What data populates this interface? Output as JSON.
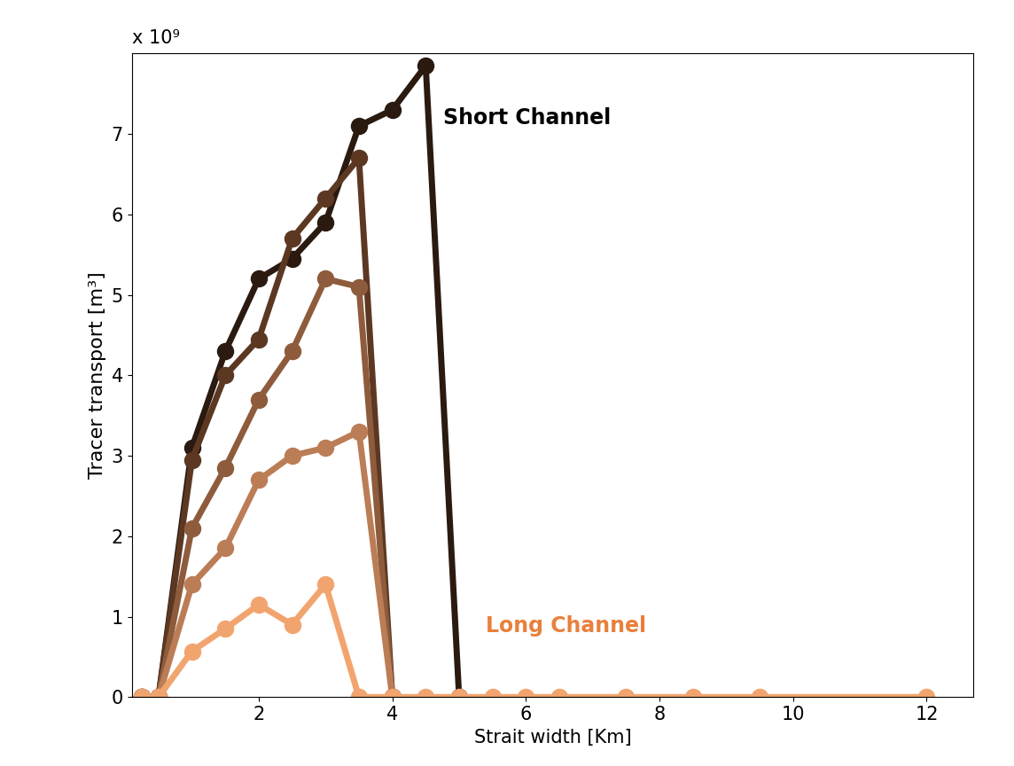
{
  "chart_data": {
    "type": "line",
    "x_label": "Strait width [Km]",
    "y_label": "Tracer transport [m³]",
    "y_multiplier": "x 10⁹",
    "annotations": [
      {
        "text": "Short Channel",
        "color": "#000000"
      },
      {
        "text": "Long Channel",
        "color": "#e8803c"
      }
    ],
    "xlim": [
      0.1,
      12.7
    ],
    "xticks": [
      2,
      4,
      6,
      8,
      10,
      12
    ],
    "ylim": [
      0,
      8
    ],
    "yticks": [
      0,
      1,
      2,
      3,
      4,
      5,
      6,
      7
    ],
    "grid": false,
    "marker": "o",
    "line_style": "solid",
    "series": [
      {
        "color": "#2a1a10",
        "x": [
          0.25,
          0.5,
          1,
          1.5,
          2,
          2.5,
          3,
          3.5,
          4,
          4.5,
          5
        ],
        "values": [
          0,
          0,
          3.1,
          4.3,
          5.2,
          5.45,
          5.9,
          7.1,
          7.3,
          7.85,
          0
        ]
      },
      {
        "color": "#5c3823",
        "x": [
          0.25,
          0.5,
          1,
          1.5,
          2,
          2.5,
          3,
          3.5,
          4
        ],
        "values": [
          0,
          0,
          2.95,
          4.0,
          4.45,
          5.7,
          6.2,
          6.7,
          0
        ]
      },
      {
        "color": "#8e5c3c",
        "x": [
          0.25,
          0.5,
          1,
          1.5,
          2,
          2.5,
          3,
          3.5,
          4
        ],
        "values": [
          0,
          0,
          2.1,
          2.85,
          3.7,
          4.3,
          5.2,
          5.1,
          0
        ]
      },
      {
        "color": "#bb7d56",
        "x": [
          0.25,
          0.5,
          1,
          1.5,
          2,
          2.5,
          3,
          3.5,
          4
        ],
        "values": [
          0,
          0,
          1.4,
          1.85,
          2.7,
          3.0,
          3.1,
          3.3,
          0
        ]
      },
      {
        "color": "#f2a46f",
        "x": [
          0.25,
          0.5,
          1,
          1.5,
          2,
          2.5,
          3,
          3.5,
          4,
          4.5,
          5,
          5.5,
          6,
          6.5,
          7.5,
          8.5,
          9.5,
          12
        ],
        "values": [
          0,
          0,
          0.57,
          0.85,
          1.15,
          0.9,
          1.4,
          0,
          0,
          0,
          0,
          0,
          0,
          0,
          0,
          0,
          0,
          0
        ]
      }
    ]
  }
}
